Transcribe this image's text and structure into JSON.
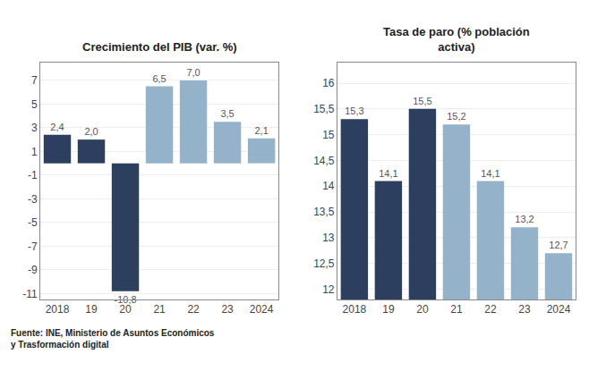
{
  "chart_data": [
    {
      "type": "bar",
      "title": "Crecimiento del PIB (var. %)",
      "categories": [
        "2018",
        "19",
        "20",
        "21",
        "22",
        "23",
        "2024"
      ],
      "values": [
        2.4,
        2.0,
        -10.8,
        6.5,
        7.0,
        3.5,
        2.1
      ],
      "value_labels": [
        "2,4",
        "2,0",
        "-10,8",
        "6,5",
        "7,0",
        "3,5",
        "2,1"
      ],
      "data_labels": true,
      "colors": [
        "#2d3f5e",
        "#2d3f5e",
        "#2d3f5e",
        "#94b3cb",
        "#94b3cb",
        "#94b3cb",
        "#94b3cb"
      ],
      "ylim": [
        -11.5,
        8.5
      ],
      "yticks": [
        -11,
        -9,
        -7,
        -5,
        -3,
        -1,
        1,
        3,
        5,
        7
      ],
      "grid": true,
      "annotations": [
        "Fuente: INE, Ministerio de Asuntos Económicos\ny Trasformación digital"
      ]
    },
    {
      "type": "bar",
      "title": "Tasa de paro (% población\nactiva)",
      "categories": [
        "2018",
        "19",
        "20",
        "21",
        "22",
        "23",
        "2024"
      ],
      "values": [
        15.3,
        14.1,
        15.5,
        15.2,
        14.1,
        13.2,
        12.7
      ],
      "value_labels": [
        "15,3",
        "14,1",
        "15,5",
        "15,2",
        "14,1",
        "13,2",
        "12,7"
      ],
      "data_labels": true,
      "colors": [
        "#2d3f5e",
        "#2d3f5e",
        "#2d3f5e",
        "#94b3cb",
        "#94b3cb",
        "#94b3cb",
        "#94b3cb"
      ],
      "ylim": [
        11.8,
        16.4
      ],
      "yticks": [
        12,
        {
          "value": 12.5,
          "label": "12,5"
        },
        13,
        {
          "value": 13.5,
          "label": "13,5"
        },
        14,
        {
          "value": 14.5,
          "label": "14,5"
        },
        15,
        {
          "value": 15.5,
          "label": "15,5"
        },
        16
      ],
      "grid": true
    }
  ]
}
